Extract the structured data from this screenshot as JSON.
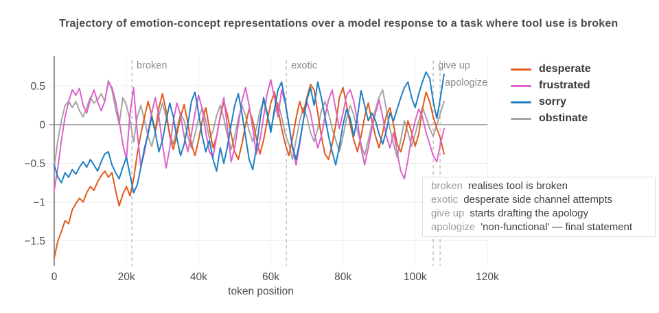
{
  "page": {
    "title": "Trajectory of emotion-concept representations over a model response to a task where tool use is broken"
  },
  "chart_data": {
    "type": "line",
    "title": "Trajectory of emotion-concept representations over a model response to a task where tool use is broken",
    "xlabel": "token position",
    "ylabel": "",
    "xlim": [
      0,
      120000
    ],
    "ylim": [
      -1.75,
      0.7
    ],
    "grid": true,
    "legend_position": "right",
    "x_step_tokens": 1000,
    "x_ticks": [
      {
        "v": 0,
        "label": "0"
      },
      {
        "v": 20000,
        "label": "20k"
      },
      {
        "v": 40000,
        "label": "40k"
      },
      {
        "v": 60000,
        "label": "60k"
      },
      {
        "v": 80000,
        "label": "80k"
      },
      {
        "v": 100000,
        "label": "100k"
      },
      {
        "v": 120000,
        "label": "120k"
      }
    ],
    "y_ticks": [
      {
        "v": 0.5,
        "label": "0.5"
      },
      {
        "v": 0,
        "label": "0"
      },
      {
        "v": -0.5,
        "label": "−0.5"
      },
      {
        "v": -1,
        "label": "−1"
      },
      {
        "v": -1.5,
        "label": "−1.5"
      }
    ],
    "annotations": [
      {
        "label": "broken",
        "x": 21500,
        "row": 0
      },
      {
        "label": "exotic",
        "x": 64300,
        "row": 0
      },
      {
        "label": "give up",
        "x": 105000,
        "row": 0
      },
      {
        "label": "apologize",
        "x": 106900,
        "row": 1
      }
    ],
    "series": [
      {
        "name": "desperate",
        "color": "#e2591b",
        "values": [
          -1.72,
          -1.5,
          -1.38,
          -1.24,
          -1.28,
          -1.1,
          -1.02,
          -0.95,
          -1.0,
          -0.88,
          -0.8,
          -0.85,
          -0.74,
          -0.66,
          -0.6,
          -0.68,
          -0.62,
          -0.85,
          -1.05,
          -0.9,
          -0.8,
          -0.92,
          -0.7,
          -0.38,
          -0.12,
          0.1,
          0.3,
          0.12,
          -0.08,
          0.22,
          0.4,
          0.18,
          -0.15,
          -0.32,
          -0.12,
          0.1,
          0.26,
          0.02,
          -0.25,
          -0.4,
          -0.2,
          0.05,
          0.22,
          -0.05,
          -0.3,
          -0.15,
          0.1,
          0.3,
          0.12,
          -0.12,
          -0.35,
          -0.45,
          -0.25,
          0.0,
          0.2,
          0.05,
          -0.18,
          -0.38,
          -0.2,
          0.05,
          0.28,
          0.42,
          0.2,
          -0.05,
          -0.25,
          -0.4,
          -0.18,
          0.08,
          0.3,
          0.15,
          0.35,
          0.52,
          0.45,
          0.15,
          -0.15,
          -0.38,
          -0.45,
          -0.25,
          0.0,
          0.35,
          0.48,
          0.25,
          0.0,
          -0.2,
          -0.35,
          -0.15,
          0.1,
          0.28,
          0.05,
          -0.15,
          -0.3,
          -0.1,
          0.12,
          0.22,
          0.0,
          -0.25,
          -0.35,
          -0.18,
          0.05,
          -0.1,
          -0.28,
          -0.12,
          0.2,
          0.42,
          0.3,
          0.1,
          -0.05,
          -0.18,
          -0.38
        ]
      },
      {
        "name": "frustrated",
        "color": "#de62cb",
        "values": [
          -0.85,
          -0.55,
          -0.2,
          0.1,
          0.3,
          0.45,
          0.38,
          0.47,
          0.25,
          0.15,
          0.32,
          0.45,
          0.3,
          0.18,
          0.3,
          0.55,
          0.48,
          0.3,
          0.05,
          -0.25,
          -0.45,
          0.15,
          0.48,
          -0.1,
          -0.55,
          -0.35,
          -0.1,
          0.15,
          0.35,
          0.1,
          -0.25,
          -0.56,
          -0.3,
          0.05,
          0.28,
          0.12,
          -0.15,
          -0.35,
          -0.12,
          0.15,
          0.38,
          0.2,
          -0.1,
          -0.35,
          -0.42,
          -0.15,
          0.12,
          0.35,
          -0.05,
          -0.48,
          -0.3,
          0.0,
          0.3,
          0.48,
          0.25,
          -0.05,
          -0.38,
          -0.2,
          0.1,
          0.4,
          0.58,
          0.35,
          0.1,
          0.45,
          0.28,
          0.0,
          -0.3,
          -0.52,
          -0.25,
          0.05,
          0.3,
          0.15,
          -0.1,
          -0.3,
          -0.15,
          0.1,
          0.32,
          0.45,
          0.2,
          -0.05,
          0.15,
          0.38,
          0.45,
          0.3,
          0.05,
          -0.3,
          -0.52,
          -0.3,
          -0.05,
          0.15,
          0.32,
          0.1,
          -0.15,
          -0.3,
          -0.1,
          -0.35,
          -0.6,
          -0.7,
          -0.45,
          -0.15,
          0.05,
          0.2,
          0.1,
          -0.1,
          -0.25,
          -0.4,
          -0.48,
          -0.25,
          -0.05
        ]
      },
      {
        "name": "sorry",
        "color": "#1d7fc2",
        "values": [
          -0.52,
          -0.68,
          -0.75,
          -0.62,
          -0.68,
          -0.58,
          -0.64,
          -0.55,
          -0.48,
          -0.55,
          -0.45,
          -0.52,
          -0.6,
          -0.48,
          -0.38,
          -0.35,
          -0.52,
          -0.62,
          -0.7,
          -0.55,
          -0.42,
          -0.65,
          -0.88,
          -0.78,
          -0.55,
          -0.3,
          -0.12,
          0.1,
          -0.1,
          -0.35,
          -0.2,
          0.05,
          0.28,
          0.1,
          -0.18,
          -0.4,
          -0.25,
          0.0,
          0.3,
          0.42,
          0.15,
          -0.15,
          -0.35,
          -0.2,
          -0.45,
          -0.6,
          -0.3,
          -0.5,
          -0.28,
          0.0,
          0.25,
          0.4,
          0.15,
          -0.15,
          -0.45,
          -0.58,
          -0.3,
          0.05,
          0.35,
          0.15,
          -0.1,
          0.2,
          0.45,
          0.55,
          0.3,
          0.0,
          -0.28,
          -0.45,
          -0.22,
          0.05,
          0.32,
          0.48,
          0.25,
          0.55,
          0.35,
          0.1,
          -0.15,
          -0.35,
          -0.52,
          -0.28,
          0.0,
          0.2,
          0.08,
          -0.15,
          0.1,
          0.44,
          0.25,
          0.05,
          0.15,
          0.05,
          -0.12,
          -0.25,
          -0.08,
          0.15,
          0.05,
          0.2,
          0.35,
          0.48,
          0.55,
          0.35,
          0.22,
          0.4,
          0.55,
          0.68,
          0.6,
          0.3,
          0.08,
          0.35,
          0.65
        ]
      },
      {
        "name": "obstinate",
        "color": "#a4a4a4",
        "values": [
          -0.55,
          -0.2,
          0.05,
          0.25,
          0.3,
          0.22,
          0.3,
          0.18,
          0.1,
          0.22,
          0.35,
          0.28,
          0.32,
          0.4,
          0.3,
          0.57,
          0.45,
          0.2,
          0.0,
          0.35,
          0.25,
          0.05,
          -0.22,
          0.1,
          0.25,
          0.05,
          -0.15,
          -0.28,
          -0.1,
          0.12,
          0.28,
          0.1,
          -0.12,
          -0.25,
          -0.05,
          0.15,
          0.05,
          -0.15,
          -0.3,
          -0.12,
          0.08,
          0.22,
          0.05,
          -0.18,
          -0.08,
          0.12,
          0.25,
          0.08,
          -0.15,
          -0.32,
          -0.15,
          0.08,
          0.25,
          0.12,
          -0.08,
          -0.22,
          -0.05,
          0.18,
          0.3,
          0.12,
          -0.05,
          0.15,
          0.28,
          0.1,
          -0.12,
          -0.25,
          -0.45,
          -0.2,
          0.05,
          0.22,
          0.1,
          -0.1,
          -0.22,
          -0.05,
          0.18,
          0.3,
          0.15,
          -0.05,
          -0.2,
          -0.35,
          -0.15,
          0.08,
          0.25,
          0.12,
          -0.08,
          -0.25,
          -0.4,
          -0.2,
          0.0,
          0.2,
          0.35,
          0.45,
          0.2,
          -0.05,
          -0.25,
          -0.42,
          -0.2,
          0.05,
          -0.1,
          -0.28,
          -0.12,
          0.05,
          0.22,
          0.1,
          -0.05,
          -0.15,
          0.0,
          0.15,
          0.3
        ]
      }
    ],
    "colors": {
      "axis": "#6e6e6e",
      "zero_line": "#8b8b8b",
      "gridline": "#ededed",
      "dashed_marker": "#b9b9b9",
      "tick_label": "#4c4c4c",
      "annotation_label": "#8c8c8c"
    }
  },
  "legend": {
    "items": [
      {
        "label": "desperate",
        "color": "#e2591b"
      },
      {
        "label": "frustrated",
        "color": "#de62cb"
      },
      {
        "label": "sorry",
        "color": "#1d7fc2"
      },
      {
        "label": "obstinate",
        "color": "#a4a4a4"
      }
    ]
  },
  "notes": {
    "items": [
      {
        "term": "broken",
        "text": "realises tool is broken"
      },
      {
        "term": "exotic",
        "text": "desperate side channel attempts"
      },
      {
        "term": "give up",
        "text": "starts drafting the apology"
      },
      {
        "term": "apologize",
        "text": "'non-functional' — final statement"
      }
    ]
  }
}
